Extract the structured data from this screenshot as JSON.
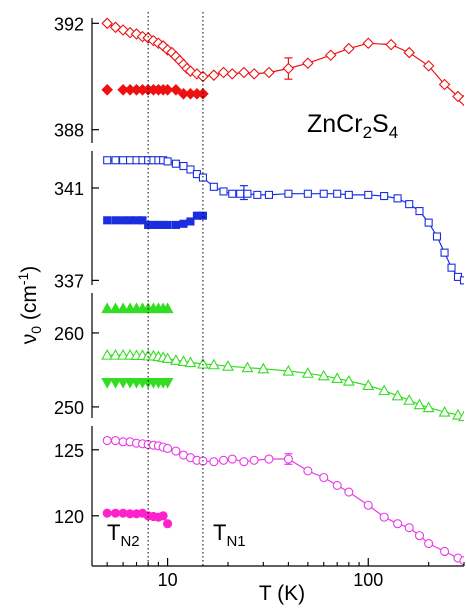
{
  "chart_data": {
    "type": "scatter",
    "xlabel": "T (K)",
    "ylabel_main": "ν",
    "ylabel_sub": "0",
    "ylabel_unit_pre": " (cm",
    "ylabel_unit_sup": "-1",
    "ylabel_unit_post": ")",
    "x_scale": "log",
    "xlim": [
      4.2,
      300
    ],
    "x_ticks": [
      {
        "value": 10,
        "label": "10"
      },
      {
        "value": 100,
        "label": "100"
      }
    ],
    "annotation": {
      "base": "ZnCr",
      "sub1": "2",
      "mid": "S",
      "sub2": "4"
    },
    "vlines": [
      {
        "x": 8,
        "label_base": "T",
        "label_sub": "N2"
      },
      {
        "x": 15,
        "label_base": "T",
        "label_sub": "N1"
      }
    ],
    "panels": [
      {
        "id": "p388",
        "ylim": [
          387.5,
          392.2
        ],
        "y_ticks": [
          {
            "value": 392,
            "label": "392"
          },
          {
            "value": 388,
            "label": "388"
          }
        ],
        "series": [
          {
            "marker": "diamond-open",
            "color": "#ee1111",
            "line": true,
            "points": [
              [
                5,
                392
              ],
              [
                5.5,
                391.85
              ],
              [
                6,
                391.75
              ],
              [
                6.5,
                391.65
              ],
              [
                7,
                391.6
              ],
              [
                7.5,
                391.5
              ],
              [
                8,
                391.45
              ],
              [
                8.5,
                391.35
              ],
              [
                9,
                391.25
              ],
              [
                9.5,
                391.15
              ],
              [
                10,
                391.0
              ],
              [
                10.5,
                390.9
              ],
              [
                11,
                390.75
              ],
              [
                11.5,
                390.6
              ],
              [
                12,
                390.45
              ],
              [
                12.5,
                390.3
              ],
              [
                13,
                390.2
              ],
              [
                14,
                390.1
              ],
              [
                15,
                390.0
              ],
              [
                17,
                390.05
              ],
              [
                19,
                390.15
              ],
              [
                21,
                390.1
              ],
              [
                24,
                390.15
              ],
              [
                27,
                390.1
              ],
              [
                32,
                390.15
              ],
              [
                40,
                390.3
              ],
              [
                50,
                390.5
              ],
              [
                65,
                390.8
              ],
              [
                80,
                391.05
              ],
              [
                100,
                391.25
              ],
              [
                130,
                391.2
              ],
              [
                160,
                390.9
              ],
              [
                200,
                390.4
              ],
              [
                240,
                389.7
              ],
              [
                280,
                389.25
              ],
              [
                300,
                389.1
              ]
            ],
            "errorbars": [
              {
                "x": 40,
                "y": 390.3,
                "err": 0.4
              }
            ]
          },
          {
            "marker": "diamond-filled",
            "color": "#ee1111",
            "line": false,
            "points": [
              [
                5,
                389.5
              ],
              [
                6,
                389.5
              ],
              [
                6.5,
                389.5
              ],
              [
                7,
                389.5
              ],
              [
                7.5,
                389.5
              ],
              [
                8,
                389.5
              ],
              [
                8.5,
                389.5
              ],
              [
                9,
                389.5
              ],
              [
                9.5,
                389.5
              ],
              [
                10,
                389.5
              ],
              [
                11,
                389.5
              ],
              [
                12,
                389.35
              ],
              [
                13,
                389.35
              ],
              [
                14,
                389.35
              ],
              [
                15,
                389.35
              ]
            ]
          }
        ]
      },
      {
        "id": "p341",
        "ylim": [
          336.8,
          342.6
        ],
        "y_ticks": [
          {
            "value": 341,
            "label": "341"
          },
          {
            "value": 337,
            "label": "337"
          }
        ],
        "series": [
          {
            "marker": "square-open",
            "color": "#1a2ee0",
            "line": true,
            "points": [
              [
                5,
                342.2
              ],
              [
                5.5,
                342.2
              ],
              [
                6,
                342.2
              ],
              [
                6.5,
                342.2
              ],
              [
                7,
                342.2
              ],
              [
                7.5,
                342.2
              ],
              [
                8,
                342.2
              ],
              [
                8.5,
                342.2
              ],
              [
                9,
                342.2
              ],
              [
                9.5,
                342.2
              ],
              [
                10,
                342.15
              ],
              [
                11,
                342.05
              ],
              [
                12,
                341.95
              ],
              [
                13,
                341.8
              ],
              [
                14,
                341.6
              ],
              [
                15,
                341.45
              ],
              [
                17,
                341.05
              ],
              [
                19,
                340.85
              ],
              [
                21,
                340.75
              ],
              [
                23,
                340.75
              ],
              [
                25,
                340.75
              ],
              [
                28,
                340.7
              ],
              [
                32,
                340.7
              ],
              [
                40,
                340.75
              ],
              [
                50,
                340.75
              ],
              [
                60,
                340.75
              ],
              [
                70,
                340.75
              ],
              [
                80,
                340.7
              ],
              [
                100,
                340.7
              ],
              [
                120,
                340.65
              ],
              [
                140,
                340.55
              ],
              [
                160,
                340.3
              ],
              [
                180,
                340.0
              ],
              [
                200,
                339.5
              ],
              [
                220,
                338.9
              ],
              [
                240,
                338.2
              ],
              [
                260,
                337.55
              ],
              [
                280,
                337.15
              ],
              [
                300,
                337.0
              ]
            ],
            "errorbars": [
              {
                "x": 24,
                "y": 340.8,
                "err": 0.3
              }
            ]
          },
          {
            "marker": "square-filled",
            "color": "#1a2ee0",
            "line": false,
            "points": [
              [
                5,
                339.6
              ],
              [
                5.5,
                339.6
              ],
              [
                6,
                339.6
              ],
              [
                6.5,
                339.6
              ],
              [
                7,
                339.6
              ],
              [
                7.5,
                339.6
              ],
              [
                8,
                339.4
              ],
              [
                8.5,
                339.4
              ],
              [
                9,
                339.4
              ],
              [
                9.5,
                339.4
              ],
              [
                10,
                339.4
              ],
              [
                11,
                339.4
              ],
              [
                12,
                339.45
              ],
              [
                13,
                339.55
              ],
              [
                14,
                339.8
              ],
              [
                15,
                339.8
              ]
            ]
          }
        ]
      },
      {
        "id": "p260",
        "ylim": [
          248.5,
          265.4
        ],
        "y_ticks": [
          {
            "value": 260,
            "label": "260"
          },
          {
            "value": 250,
            "label": "250"
          }
        ],
        "series": [
          {
            "marker": "triangle-up-filled",
            "color": "#33dd22",
            "line": false,
            "points": [
              [
                5,
                263.3
              ],
              [
                5.5,
                263.3
              ],
              [
                6,
                263.3
              ],
              [
                6.5,
                263.3
              ],
              [
                7,
                263.3
              ],
              [
                7.5,
                263.3
              ],
              [
                8,
                263.3
              ],
              [
                8.5,
                263.3
              ],
              [
                9,
                263.3
              ],
              [
                9.5,
                263.3
              ],
              [
                10,
                263.3
              ]
            ]
          },
          {
            "marker": "triangle-up-open",
            "color": "#33dd22",
            "line": true,
            "points": [
              [
                5,
                257.0
              ],
              [
                5.5,
                257.0
              ],
              [
                6,
                257.0
              ],
              [
                6.5,
                257.0
              ],
              [
                7,
                256.95
              ],
              [
                7.5,
                256.95
              ],
              [
                8,
                256.9
              ],
              [
                8.5,
                256.9
              ],
              [
                9,
                256.8
              ],
              [
                9.5,
                256.7
              ],
              [
                10,
                256.55
              ],
              [
                11,
                256.3
              ],
              [
                12,
                256.15
              ],
              [
                13,
                256.0
              ],
              [
                15,
                255.8
              ],
              [
                17,
                255.7
              ],
              [
                20,
                255.5
              ],
              [
                25,
                255.3
              ],
              [
                30,
                255.15
              ],
              [
                40,
                254.85
              ],
              [
                50,
                254.55
              ],
              [
                60,
                254.2
              ],
              [
                70,
                253.85
              ],
              [
                80,
                253.5
              ],
              [
                100,
                252.9
              ],
              [
                120,
                252.2
              ],
              [
                140,
                251.5
              ],
              [
                160,
                250.9
              ],
              [
                180,
                250.3
              ],
              [
                200,
                249.9
              ],
              [
                240,
                249.3
              ],
              [
                280,
                248.9
              ],
              [
                300,
                248.7
              ]
            ]
          },
          {
            "marker": "triangle-down-filled",
            "color": "#33dd22",
            "line": false,
            "points": [
              [
                5,
                253.3
              ],
              [
                5.5,
                253.3
              ],
              [
                6,
                253.3
              ],
              [
                6.5,
                253.3
              ],
              [
                7,
                253.3
              ],
              [
                7.5,
                253.3
              ],
              [
                8,
                253.3
              ],
              [
                8.5,
                253.3
              ],
              [
                9,
                253.3
              ],
              [
                9.5,
                253.3
              ],
              [
                10,
                253.3
              ]
            ]
          }
        ]
      },
      {
        "id": "p125",
        "ylim": [
          116.2,
          126.8
        ],
        "y_ticks": [
          {
            "value": 125,
            "label": "125"
          },
          {
            "value": 120,
            "label": "120"
          }
        ],
        "series": [
          {
            "marker": "circle-open",
            "color": "#e83ae8",
            "line": true,
            "points": [
              [
                5,
                125.7
              ],
              [
                5.5,
                125.7
              ],
              [
                6,
                125.6
              ],
              [
                6.5,
                125.6
              ],
              [
                7,
                125.5
              ],
              [
                7.5,
                125.45
              ],
              [
                8,
                125.4
              ],
              [
                8.5,
                125.35
              ],
              [
                9,
                125.3
              ],
              [
                9.5,
                125.2
              ],
              [
                10,
                125.1
              ],
              [
                11,
                124.9
              ],
              [
                12,
                124.6
              ],
              [
                13,
                124.4
              ],
              [
                14,
                124.2
              ],
              [
                15,
                124.15
              ],
              [
                17,
                124.1
              ],
              [
                19,
                124.2
              ],
              [
                21,
                124.3
              ],
              [
                24,
                124.1
              ],
              [
                27,
                124.2
              ],
              [
                32,
                124.3
              ],
              [
                40,
                124.3
              ],
              [
                50,
                123.4
              ],
              [
                60,
                122.9
              ],
              [
                70,
                122.3
              ],
              [
                80,
                121.8
              ],
              [
                100,
                120.8
              ],
              [
                120,
                119.9
              ],
              [
                140,
                119.4
              ],
              [
                160,
                119.1
              ],
              [
                180,
                118.5
              ],
              [
                200,
                117.9
              ],
              [
                240,
                117.3
              ],
              [
                280,
                116.8
              ],
              [
                300,
                116.6
              ]
            ],
            "errorbars": [
              {
                "x": 40,
                "y": 124.3,
                "err": 0.4
              }
            ]
          },
          {
            "marker": "circle-filled",
            "color": "#ff22cc",
            "line": true,
            "points": [
              [
                5,
                120.2
              ],
              [
                5.5,
                120.2
              ],
              [
                6,
                120.2
              ],
              [
                6.5,
                120.15
              ],
              [
                7,
                120.15
              ],
              [
                7.5,
                120.2
              ],
              [
                8,
                120.0
              ],
              [
                8.5,
                119.95
              ],
              [
                9,
                119.9
              ],
              [
                9.5,
                120.0
              ],
              [
                10,
                119.4
              ]
            ]
          }
        ]
      }
    ]
  }
}
